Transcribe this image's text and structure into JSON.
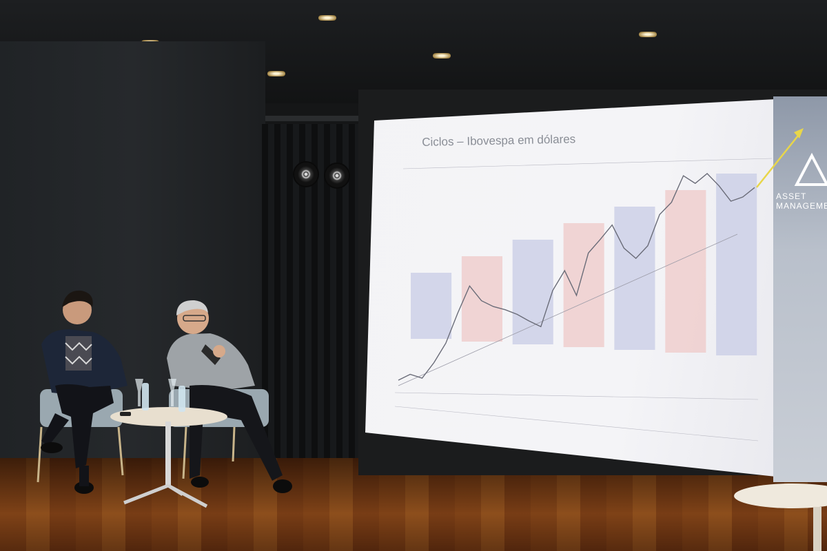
{
  "slide": {
    "title": "Ciclos – Ibovespa em dólares",
    "brand_line1": "ASSET",
    "brand_line2": "MANAGEMENT"
  },
  "colors": {
    "bull_shade": "#c8cce6",
    "bear_shade": "#efc9c8",
    "price_line": "#6a6c78",
    "arrow": "#e8d64a",
    "floor": "#7a4016"
  },
  "chart_data": {
    "type": "line",
    "title": "Ciclos – Ibovespa em dólares",
    "xlabel": "",
    "ylabel": "",
    "log_scale": true,
    "series": [
      {
        "values": [
          3,
          3.3,
          3.1,
          4,
          5.5,
          9,
          14,
          11,
          10,
          9.5,
          8.8,
          7.9,
          7.2,
          13,
          18,
          12,
          24,
          30,
          38,
          26,
          22,
          27,
          45,
          55,
          85,
          75,
          88,
          72,
          56,
          60,
          70
        ]
      }
    ],
    "cycles": [
      "bull",
      "bear",
      "bull",
      "bear",
      "bull",
      "bear",
      "bull"
    ]
  }
}
